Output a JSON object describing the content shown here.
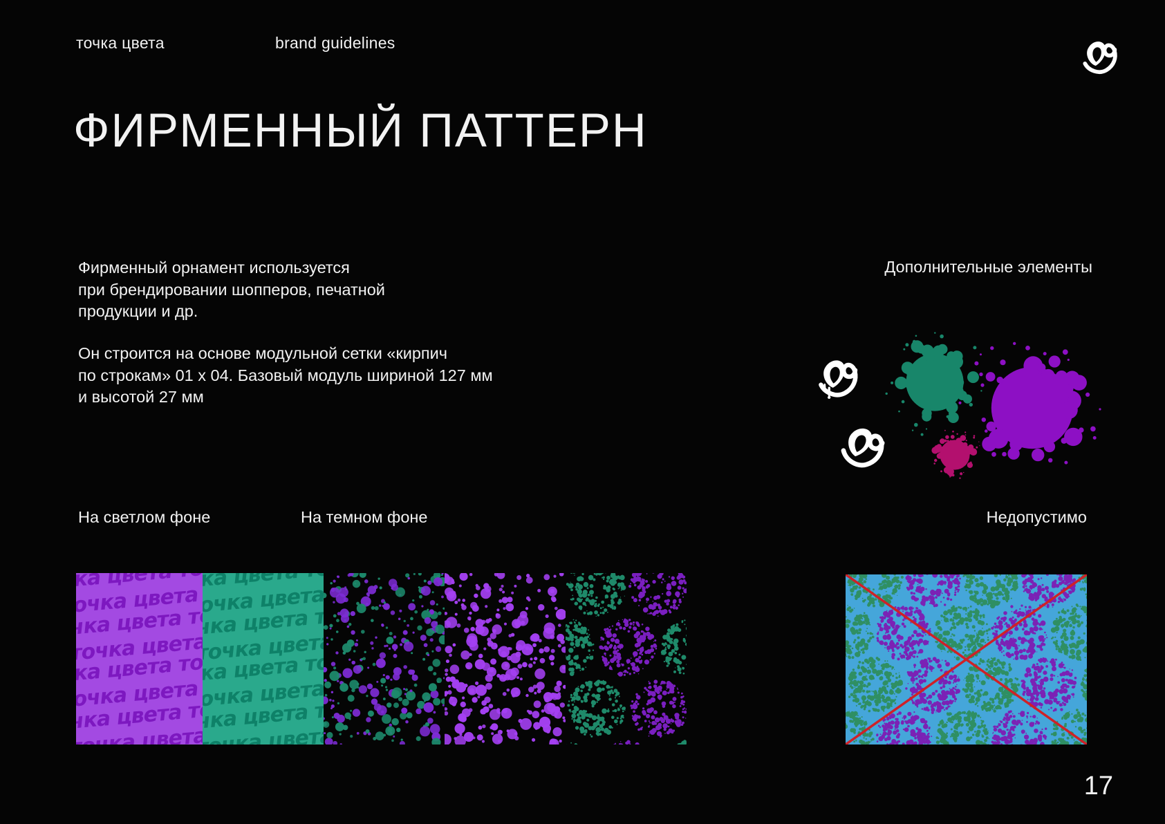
{
  "header": {
    "brand": "точка цвета",
    "doc": "brand guidelines",
    "logo_icon": "brand-heart-mark"
  },
  "title": "ФИРМЕННЫЙ ПАТТЕРН",
  "intro": {
    "p1": "Фирменный орнамент используется\nпри брендировании шопперов, печатной\nпродукции и др.",
    "p2": "Он строится на основе модульной сетки «кирпич\nпо строкам» 01 х 04. Базовый модуль шириной 127 мм\nи высотой 27 мм"
  },
  "sections": {
    "additional": "Дополнительные элементы",
    "light_bg": "На светлом фоне",
    "dark_bg": "На темном фоне",
    "not_allowed": "Недопустимо"
  },
  "page_number": "17",
  "pattern_word": "точка цвета",
  "colors": {
    "background": "#050505",
    "text": "#f2f2f2",
    "logo": "#ffffff"
  },
  "patterns": {
    "strip_segments": [
      {
        "id": "lettering-purple",
        "bg": "#a34ae2",
        "fg": "#7d18c0"
      },
      {
        "id": "lettering-green",
        "bg": "#2aa98c",
        "fg": "#0e8168"
      },
      {
        "id": "dots-mixed",
        "bg": "#050505",
        "dot_colors": [
          "#1d8a6c",
          "#7e2cd6"
        ]
      },
      {
        "id": "dots-violet",
        "bg": "#050505",
        "dot_colors": [
          "#a440f2"
        ]
      },
      {
        "id": "dotted-circles",
        "bg": "#050505",
        "dot_colors": [
          "#1f8a6a",
          "#7a1fc0"
        ]
      }
    ],
    "forbidden": {
      "bg": "#45a6da",
      "circle_colors": [
        "#2f8f63",
        "#7b22b5"
      ],
      "cross_color": "#cf2127"
    }
  },
  "elements": {
    "logo_color": "#ffffff",
    "splashes": [
      {
        "name": "green-splash",
        "color": "#18866a"
      },
      {
        "name": "magenta-splash",
        "color": "#b3106e"
      },
      {
        "name": "purple-splash",
        "color": "#8d10c4"
      }
    ]
  }
}
